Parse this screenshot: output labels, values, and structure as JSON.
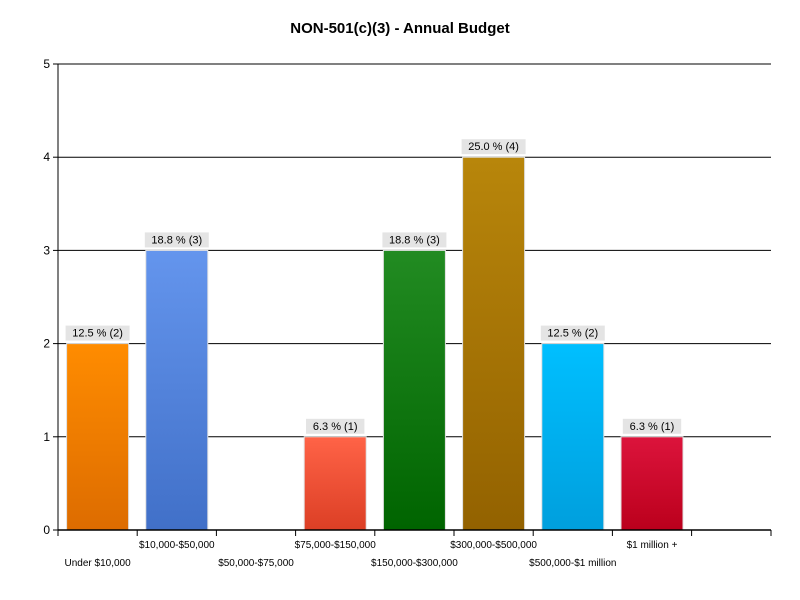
{
  "chart_data": {
    "type": "bar",
    "title": "NON-501(c)(3) - Annual Budget",
    "xlabel": "",
    "ylabel": "",
    "ylim": [
      0,
      5
    ],
    "yticks": [
      0,
      1,
      2,
      3,
      4,
      5
    ],
    "grid": true,
    "legend": "none",
    "categories": [
      "Under $10,000",
      "$10,000-$50,000",
      "$50,000-$75,000",
      "$75,000-$150,000",
      "$150,000-$300,000",
      "$300,000-$500,000",
      "$500,000-$1 million",
      "$1 million +"
    ],
    "values": [
      2,
      3,
      0,
      1,
      3,
      4,
      2,
      1
    ],
    "percentages": [
      12.5,
      18.8,
      0,
      6.3,
      18.8,
      25.0,
      12.5,
      6.3
    ],
    "data_labels": [
      "12.5 % (2)",
      "18.8 % (3)",
      "",
      "6.3 % (1)",
      "18.8 % (3)",
      "25.0 % (4)",
      "12.5 % (2)",
      "6.3 % (1)"
    ],
    "colors": [
      {
        "top": "#ff8c00",
        "bottom": "#dd6c00"
      },
      {
        "top": "#6495ed",
        "bottom": "#4170c8"
      },
      {
        "top": "#cccccc",
        "bottom": "#aaaaaa"
      },
      {
        "top": "#ff6347",
        "bottom": "#dc3f25"
      },
      {
        "top": "#228b22",
        "bottom": "#006400"
      },
      {
        "top": "#b8860b",
        "bottom": "#936200"
      },
      {
        "top": "#00bfff",
        "bottom": "#009fdd"
      },
      {
        "top": "#dc143c",
        "bottom": "#bb001c"
      }
    ]
  }
}
